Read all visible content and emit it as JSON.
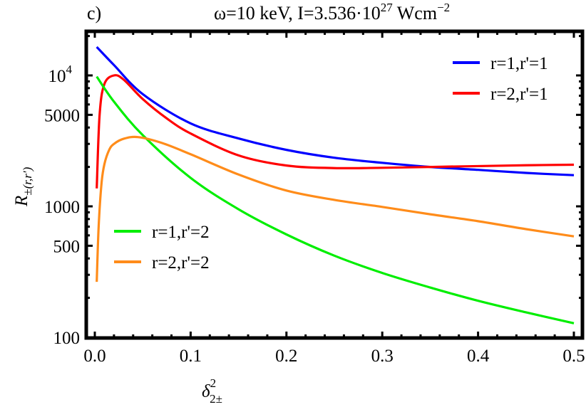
{
  "chart_data": {
    "type": "line",
    "panel_label": "c)",
    "title": {
      "prefix": "ω=10 keV, I=3.536·10",
      "exp": "27",
      "unit": " Wcm",
      "unit_exp": "−2"
    },
    "xlabel": {
      "base": "δ",
      "sup": "2",
      "sub": "2±"
    },
    "ylabel": {
      "base": "R",
      "sub": "±(r,r′)"
    },
    "xlim": [
      0,
      0.5
    ],
    "ylim": [
      100,
      22000
    ],
    "yscale": "log",
    "grid": false,
    "x_ticks": [
      "0.0",
      "0.1",
      "0.2",
      "0.3",
      "0.4",
      "0.5"
    ],
    "y_ticks": [
      {
        "value": 100,
        "label": "100"
      },
      {
        "value": 500,
        "label": "500"
      },
      {
        "value": 1000,
        "label": "1000"
      },
      {
        "value": 5000,
        "label": "5000"
      },
      {
        "value": 10000,
        "label": "10",
        "exp": "4"
      }
    ],
    "series": [
      {
        "name": "r=1,r'=1",
        "color": "#0000ff",
        "x": [
          0.002,
          0.02,
          0.05,
          0.1,
          0.15,
          0.2,
          0.25,
          0.3,
          0.35,
          0.4,
          0.45,
          0.5
        ],
        "y": [
          16500,
          12000,
          7200,
          4300,
          3300,
          2700,
          2350,
          2150,
          2000,
          1900,
          1800,
          1730
        ]
      },
      {
        "name": "r=2,r'=1",
        "color": "#ff0000",
        "x": [
          0.002,
          0.005,
          0.01,
          0.02,
          0.03,
          0.05,
          0.075,
          0.1,
          0.15,
          0.2,
          0.25,
          0.3,
          0.35,
          0.4,
          0.45,
          0.5
        ],
        "y": [
          1370,
          5000,
          8600,
          10000,
          9300,
          6600,
          4700,
          3600,
          2450,
          2050,
          1960,
          1970,
          2000,
          2030,
          2060,
          2080
        ]
      },
      {
        "name": "r=1,r'=2",
        "color": "#00ee00",
        "x": [
          0.002,
          0.02,
          0.05,
          0.1,
          0.15,
          0.2,
          0.25,
          0.3,
          0.35,
          0.4,
          0.45,
          0.5
        ],
        "y": [
          9800,
          6300,
          3500,
          1650,
          950,
          610,
          420,
          310,
          240,
          190,
          155,
          128
        ]
      },
      {
        "name": "r=2,r'=2",
        "color": "#ff8c1a",
        "x": [
          0.002,
          0.004,
          0.007,
          0.01,
          0.015,
          0.02,
          0.03,
          0.045,
          0.07,
          0.1,
          0.15,
          0.2,
          0.25,
          0.3,
          0.35,
          0.4,
          0.45,
          0.5
        ],
        "y": [
          265,
          700,
          1500,
          2100,
          2700,
          3000,
          3280,
          3380,
          3050,
          2500,
          1750,
          1320,
          1120,
          990,
          870,
          770,
          670,
          590
        ]
      }
    ],
    "legend": [
      {
        "placement": "top-right",
        "items": [
          0,
          1
        ]
      },
      {
        "placement": "center-left",
        "items": [
          2,
          3
        ]
      }
    ]
  }
}
